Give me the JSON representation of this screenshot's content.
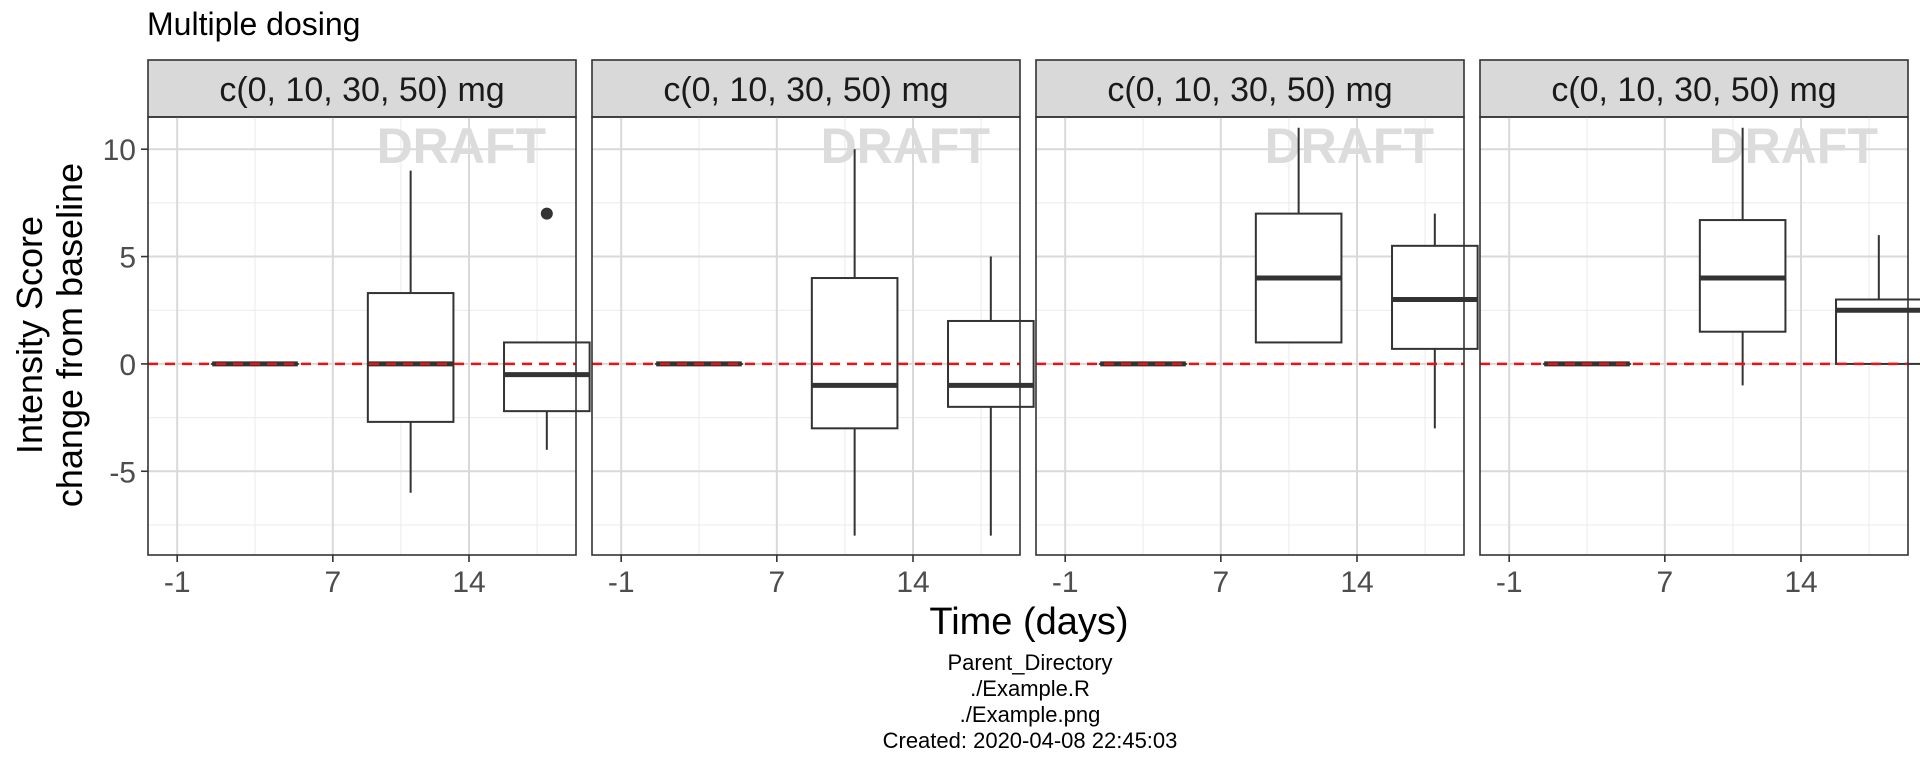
{
  "title": "Multiple dosing",
  "caption_lines": [
    "Parent_Directory",
    "./Example.R",
    "./Example.png",
    "Created: 2020-04-08 22:45:03"
  ],
  "chart_data": {
    "type": "boxplot",
    "title": "Multiple dosing",
    "xlabel": "Time (days)",
    "ylabel_lines": [
      "Intensity Score",
      "change from baseline"
    ],
    "watermark": "DRAFT",
    "x_ticks": [
      -1,
      7,
      14
    ],
    "xlim": [
      -2.5,
      19.5
    ],
    "y_ticks": [
      -5,
      0,
      5,
      10
    ],
    "ylim": [
      -8.9,
      11.5
    ],
    "reference_line": {
      "y": 0,
      "color": "#ee1111",
      "style": "dashed"
    },
    "grid": true,
    "panels": [
      {
        "label": "c(0, 10, 30, 50) mg",
        "boxes": [
          {
            "x": 3,
            "q1": 0,
            "median": 0,
            "q3": 0,
            "whisker_low": 0,
            "whisker_high": 0
          },
          {
            "x": 11,
            "q1": -2.7,
            "median": 0,
            "q3": 3.3,
            "whisker_low": -6,
            "whisker_high": 9
          },
          {
            "x": 18,
            "q1": -2.2,
            "median": -0.5,
            "q3": 1,
            "whisker_low": -4,
            "whisker_high": 1,
            "outliers": [
              7
            ]
          }
        ]
      },
      {
        "label": "c(0, 10, 30, 50) mg",
        "boxes": [
          {
            "x": 3,
            "q1": 0,
            "median": 0,
            "q3": 0,
            "whisker_low": 0,
            "whisker_high": 0
          },
          {
            "x": 11,
            "q1": -3,
            "median": -1,
            "q3": 4,
            "whisker_low": -8,
            "whisker_high": 10
          },
          {
            "x": 18,
            "q1": -2,
            "median": -1,
            "q3": 2,
            "whisker_low": -8,
            "whisker_high": 5
          }
        ]
      },
      {
        "label": "c(0, 10, 30, 50) mg",
        "boxes": [
          {
            "x": 3,
            "q1": 0,
            "median": 0,
            "q3": 0,
            "whisker_low": 0,
            "whisker_high": 0
          },
          {
            "x": 11,
            "q1": 1,
            "median": 4,
            "q3": 7,
            "whisker_low": 1,
            "whisker_high": 11
          },
          {
            "x": 18,
            "q1": 0.7,
            "median": 3,
            "q3": 5.5,
            "whisker_low": -3,
            "whisker_high": 7
          }
        ]
      },
      {
        "label": "c(0, 10, 30, 50) mg",
        "boxes": [
          {
            "x": 3,
            "q1": 0,
            "median": 0,
            "q3": 0,
            "whisker_low": 0,
            "whisker_high": 0
          },
          {
            "x": 11,
            "q1": 1.5,
            "median": 4,
            "q3": 6.7,
            "whisker_low": -1,
            "whisker_high": 11
          },
          {
            "x": 18,
            "q1": 0,
            "median": 2.5,
            "q3": 3,
            "whisker_low": 0,
            "whisker_high": 6
          }
        ]
      }
    ]
  }
}
